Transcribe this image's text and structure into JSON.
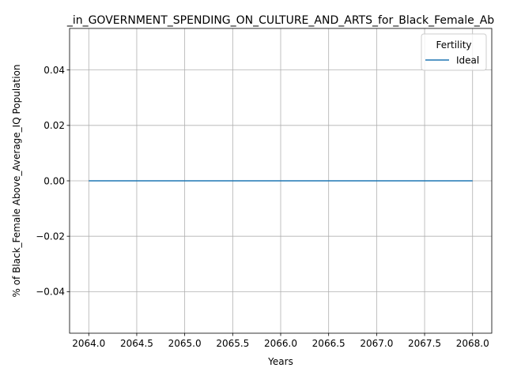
{
  "chart_data": {
    "type": "line",
    "title": "_in_GOVERNMENT_SPENDING_ON_CULTURE_AND_ARTS_for_Black_Female_Ab",
    "xlabel": "Years",
    "ylabel": "% of Black_Female Above_Average_IQ Population",
    "xlim": [
      2063.8,
      2068.2
    ],
    "ylim": [
      -0.055,
      0.055
    ],
    "x_ticks": [
      2064.0,
      2064.5,
      2065.0,
      2065.5,
      2066.0,
      2066.5,
      2067.0,
      2067.5,
      2068.0
    ],
    "x_tick_labels": [
      "2064.0",
      "2064.5",
      "2065.0",
      "2065.5",
      "2066.0",
      "2066.5",
      "2067.0",
      "2067.5",
      "2068.0"
    ],
    "y_ticks": [
      0.04,
      0.02,
      0.0,
      -0.02,
      -0.04
    ],
    "y_tick_labels": [
      "0.04",
      "0.02",
      "0.00",
      "−0.02",
      "−0.04"
    ],
    "grid": true,
    "legend": {
      "title": "Fertility",
      "placement": "top-right"
    },
    "series": [
      {
        "name": "Ideal",
        "color": "#1f77b4",
        "x": [
          2064,
          2065,
          2066,
          2067,
          2068
        ],
        "y": [
          0,
          0,
          0,
          0,
          0
        ]
      }
    ]
  }
}
